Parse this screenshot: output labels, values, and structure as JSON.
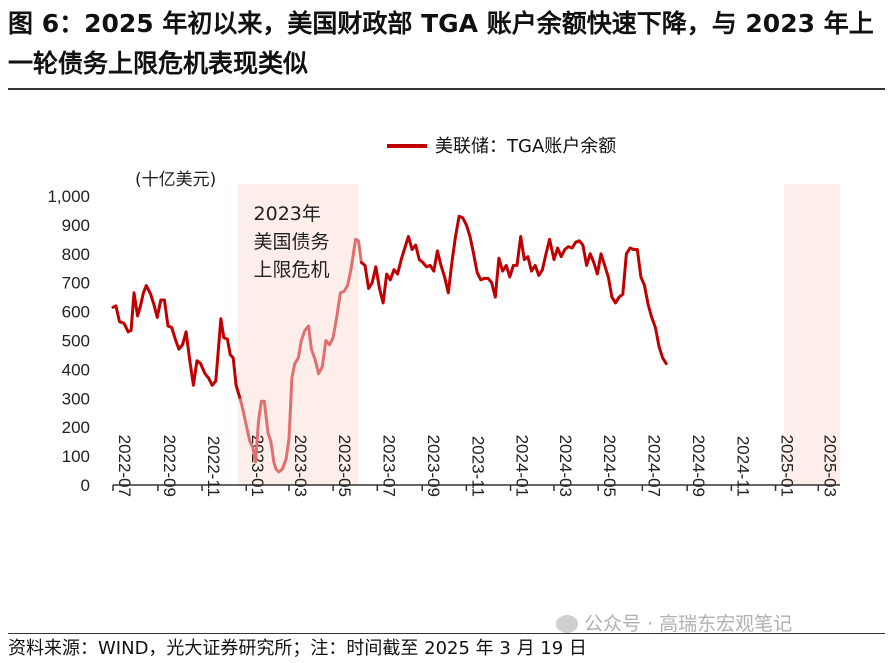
{
  "title": "图 6：2025 年初以来，美国财政部 TGA 账户余额快速下降，与 2023 年上一轮债务上限危机表现类似",
  "source": "资料来源：WIND，光大证券研究所；注：时间截至 2025 年 3 月 19 日",
  "watermark": "公众号 · 高瑞东宏观笔记",
  "colors": {
    "line": "#c00000",
    "line_light": "#e07070",
    "shade": "#fdeee9",
    "axis": "#333333"
  },
  "chart_data": {
    "type": "line",
    "ylabel": "(十亿美元)",
    "ylim": [
      0,
      1000
    ],
    "yticks": [
      "1,000",
      "900",
      "800",
      "700",
      "600",
      "500",
      "400",
      "300",
      "200",
      "100",
      "0"
    ],
    "xlim": [
      "2022-07-01",
      "2025-03-31"
    ],
    "xticks": [
      "2022-07",
      "2022-09",
      "2022-11",
      "2023-01",
      "2023-03",
      "2023-05",
      "2023-07",
      "2023-09",
      "2023-11",
      "2024-01",
      "2024-03",
      "2024-05",
      "2024-07",
      "2024-09",
      "2024-11",
      "2025-01",
      "2025-03"
    ],
    "legend": {
      "position": "top",
      "label": "美联储：TGA账户余额"
    },
    "shaded_periods": [
      {
        "start": "2022-12-20",
        "end": "2023-06-05",
        "label": "2023年美国债务上限危机"
      },
      {
        "start": "2025-01-13",
        "end": "2025-03-31",
        "label": ""
      }
    ],
    "series": [
      {
        "name": "美联储：TGA账户余额",
        "points": [
          [
            "2022-07-01",
            615
          ],
          [
            "2022-07-05",
            620
          ],
          [
            "2022-07-10",
            565
          ],
          [
            "2022-07-16",
            560
          ],
          [
            "2022-07-22",
            530
          ],
          [
            "2022-07-26",
            535
          ],
          [
            "2022-07-30",
            665
          ],
          [
            "2022-08-04",
            585
          ],
          [
            "2022-08-08",
            620
          ],
          [
            "2022-08-12",
            665
          ],
          [
            "2022-08-16",
            690
          ],
          [
            "2022-08-22",
            660
          ],
          [
            "2022-08-27",
            620
          ],
          [
            "2022-08-31",
            580
          ],
          [
            "2022-09-05",
            640
          ],
          [
            "2022-09-10",
            640
          ],
          [
            "2022-09-15",
            550
          ],
          [
            "2022-09-20",
            545
          ],
          [
            "2022-09-25",
            505
          ],
          [
            "2022-09-30",
            470
          ],
          [
            "2022-10-05",
            485
          ],
          [
            "2022-10-10",
            530
          ],
          [
            "2022-10-15",
            430
          ],
          [
            "2022-10-20",
            345
          ],
          [
            "2022-10-25",
            430
          ],
          [
            "2022-10-30",
            420
          ],
          [
            "2022-11-05",
            385
          ],
          [
            "2022-11-10",
            370
          ],
          [
            "2022-11-15",
            345
          ],
          [
            "2022-11-20",
            360
          ],
          [
            "2022-11-27",
            575
          ],
          [
            "2022-12-01",
            510
          ],
          [
            "2022-12-06",
            505
          ],
          [
            "2022-12-10",
            450
          ],
          [
            "2022-12-14",
            440
          ],
          [
            "2022-12-18",
            345
          ],
          [
            "2022-12-24",
            295
          ],
          [
            "2022-12-28",
            255
          ],
          [
            "2023-01-02",
            195
          ],
          [
            "2023-01-06",
            150
          ],
          [
            "2023-01-10",
            130
          ],
          [
            "2023-01-14",
            80
          ],
          [
            "2023-01-18",
            220
          ],
          [
            "2023-01-22",
            290
          ],
          [
            "2023-01-26",
            290
          ],
          [
            "2023-01-31",
            180
          ],
          [
            "2023-02-04",
            150
          ],
          [
            "2023-02-08",
            80
          ],
          [
            "2023-02-11",
            55
          ],
          [
            "2023-02-15",
            45
          ],
          [
            "2023-02-20",
            55
          ],
          [
            "2023-02-25",
            90
          ],
          [
            "2023-03-01",
            160
          ],
          [
            "2023-03-05",
            370
          ],
          [
            "2023-03-09",
            420
          ],
          [
            "2023-03-14",
            440
          ],
          [
            "2023-03-18",
            500
          ],
          [
            "2023-03-23",
            535
          ],
          [
            "2023-03-28",
            550
          ],
          [
            "2023-04-01",
            470
          ],
          [
            "2023-04-06",
            435
          ],
          [
            "2023-04-11",
            385
          ],
          [
            "2023-04-16",
            410
          ],
          [
            "2023-04-21",
            500
          ],
          [
            "2023-04-26",
            485
          ],
          [
            "2023-05-01",
            510
          ],
          [
            "2023-05-06",
            580
          ],
          [
            "2023-05-11",
            665
          ],
          [
            "2023-05-16",
            670
          ],
          [
            "2023-05-21",
            690
          ],
          [
            "2023-05-26",
            750
          ],
          [
            "2023-06-01",
            850
          ],
          [
            "2023-06-05",
            845
          ],
          [
            "2023-06-09",
            770
          ],
          [
            "2023-06-14",
            760
          ],
          [
            "2023-06-19",
            680
          ],
          [
            "2023-06-24",
            700
          ],
          [
            "2023-06-29",
            755
          ],
          [
            "2023-07-04",
            680
          ],
          [
            "2023-07-09",
            630
          ],
          [
            "2023-07-14",
            730
          ],
          [
            "2023-07-19",
            710
          ],
          [
            "2023-07-24",
            745
          ],
          [
            "2023-07-29",
            730
          ],
          [
            "2023-08-03",
            780
          ],
          [
            "2023-08-08",
            820
          ],
          [
            "2023-08-13",
            860
          ],
          [
            "2023-08-18",
            815
          ],
          [
            "2023-08-23",
            830
          ],
          [
            "2023-08-28",
            780
          ],
          [
            "2023-09-02",
            770
          ],
          [
            "2023-09-07",
            755
          ],
          [
            "2023-09-12",
            760
          ],
          [
            "2023-09-17",
            740
          ],
          [
            "2023-09-22",
            810
          ],
          [
            "2023-09-27",
            760
          ],
          [
            "2023-10-02",
            720
          ],
          [
            "2023-10-07",
            665
          ],
          [
            "2023-10-12",
            770
          ],
          [
            "2023-10-17",
            860
          ],
          [
            "2023-10-22",
            930
          ],
          [
            "2023-10-27",
            925
          ],
          [
            "2023-11-01",
            900
          ],
          [
            "2023-11-06",
            860
          ],
          [
            "2023-11-11",
            800
          ],
          [
            "2023-11-16",
            735
          ],
          [
            "2023-11-21",
            710
          ],
          [
            "2023-11-26",
            715
          ],
          [
            "2023-12-01",
            715
          ],
          [
            "2023-12-06",
            700
          ],
          [
            "2023-12-11",
            650
          ],
          [
            "2023-12-16",
            785
          ],
          [
            "2023-12-21",
            740
          ],
          [
            "2023-12-26",
            760
          ],
          [
            "2023-12-31",
            720
          ],
          [
            "2024-01-05",
            760
          ],
          [
            "2024-01-10",
            760
          ],
          [
            "2024-01-15",
            860
          ],
          [
            "2024-01-20",
            780
          ],
          [
            "2024-01-25",
            790
          ],
          [
            "2024-01-30",
            740
          ],
          [
            "2024-02-04",
            760
          ],
          [
            "2024-02-09",
            725
          ],
          [
            "2024-02-14",
            745
          ],
          [
            "2024-02-19",
            800
          ],
          [
            "2024-02-24",
            850
          ],
          [
            "2024-03-01",
            780
          ],
          [
            "2024-03-06",
            820
          ],
          [
            "2024-03-11",
            790
          ],
          [
            "2024-03-16",
            815
          ],
          [
            "2024-03-21",
            825
          ],
          [
            "2024-03-26",
            820
          ],
          [
            "2024-03-31",
            840
          ],
          [
            "2024-04-05",
            845
          ],
          [
            "2024-04-10",
            830
          ],
          [
            "2024-04-15",
            760
          ],
          [
            "2024-04-20",
            800
          ],
          [
            "2024-04-25",
            770
          ],
          [
            "2024-04-30",
            730
          ],
          [
            "2024-05-05",
            800
          ],
          [
            "2024-05-10",
            760
          ],
          [
            "2024-05-15",
            720
          ],
          [
            "2024-05-20",
            650
          ],
          [
            "2024-05-25",
            630
          ],
          [
            "2024-05-30",
            650
          ],
          [
            "2024-06-04",
            660
          ],
          [
            "2024-06-09",
            800
          ],
          [
            "2024-06-14",
            820
          ],
          [
            "2024-06-19",
            815
          ],
          [
            "2024-06-24",
            815
          ],
          [
            "2024-06-29",
            720
          ],
          [
            "2024-07-04",
            690
          ],
          [
            "2024-07-09",
            625
          ],
          [
            "2024-07-14",
            580
          ],
          [
            "2024-07-19",
            545
          ],
          [
            "2024-07-24",
            480
          ],
          [
            "2024-07-29",
            440
          ],
          [
            "2024-08-03",
            420
          ]
        ]
      }
    ]
  }
}
